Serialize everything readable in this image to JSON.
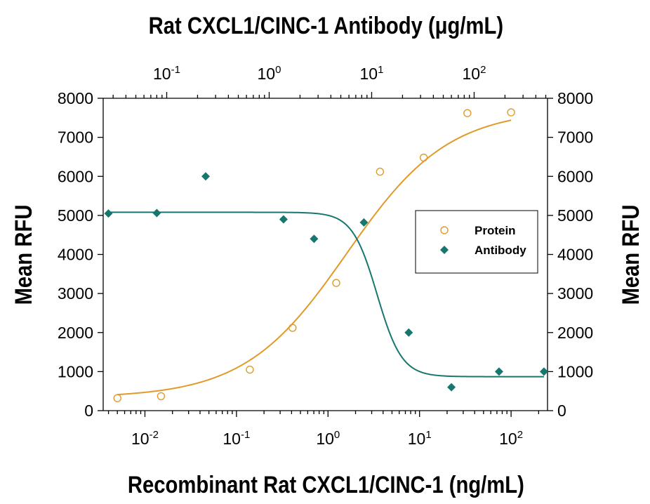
{
  "chart_data": {
    "type": "scatter",
    "title": "Rat CXCL1/CINC-1 Antibody (μg/mL)",
    "xlabel": "Recombinant Rat CXCL1/CINC-1 (ng/mL)",
    "ylabel_left": "Mean RFU",
    "ylabel_right": "Mean RFU",
    "x_scale": "log",
    "xlim": [
      0.0035,
      250
    ],
    "ylim": [
      0,
      8000
    ],
    "y_ticks": [
      "0",
      "1000",
      "2000",
      "3000",
      "4000",
      "5000",
      "6000",
      "7000",
      "8000"
    ],
    "x_ticks_bottom": [
      {
        "value": 0.01,
        "base": "10",
        "exp": "-2"
      },
      {
        "value": 0.1,
        "base": "10",
        "exp": "-1"
      },
      {
        "value": 1,
        "base": "10",
        "exp": "0"
      },
      {
        "value": 10,
        "base": "10",
        "exp": "1"
      },
      {
        "value": 100,
        "base": "10",
        "exp": "2"
      }
    ],
    "x_ticks_top": [
      {
        "value": 0.1,
        "base": "10",
        "exp": "-1"
      },
      {
        "value": 1,
        "base": "10",
        "exp": "0"
      },
      {
        "value": 10,
        "base": "10",
        "exp": "1"
      },
      {
        "value": 100,
        "base": "10",
        "exp": "2"
      }
    ],
    "x_top_range": [
      0.024,
      520
    ],
    "legend": {
      "position": "right",
      "items": [
        "Protein",
        "Antibody"
      ]
    },
    "series": [
      {
        "name": "Protein",
        "axis": "bottom",
        "marker": "open-circle",
        "color": "#E09A2A",
        "x": [
          0.005,
          0.015,
          0.14,
          0.41,
          1.23,
          3.7,
          11.1,
          33.3,
          100
        ],
        "y": [
          320,
          370,
          1050,
          2120,
          3270,
          6120,
          6480,
          7620,
          7640
        ],
        "fit": {
          "bottom": 330,
          "top": 7720,
          "ec50": 1.6,
          "hill": 0.78
        }
      },
      {
        "name": "Antibody",
        "axis": "top",
        "marker": "filled-diamond",
        "color": "#17776F",
        "x": [
          0.027,
          0.08,
          0.24,
          1.38,
          2.74,
          8.4,
          23,
          60,
          175,
          480
        ],
        "y": [
          5050,
          5060,
          6000,
          4900,
          4400,
          4820,
          2000,
          600,
          1000,
          1000
        ],
        "fit": {
          "top": 5080,
          "bottom": 870,
          "ic50": 11.3,
          "hill": 3.6
        }
      }
    ]
  },
  "colors": {
    "protein": "#E09A2A",
    "antibody": "#17776F"
  }
}
